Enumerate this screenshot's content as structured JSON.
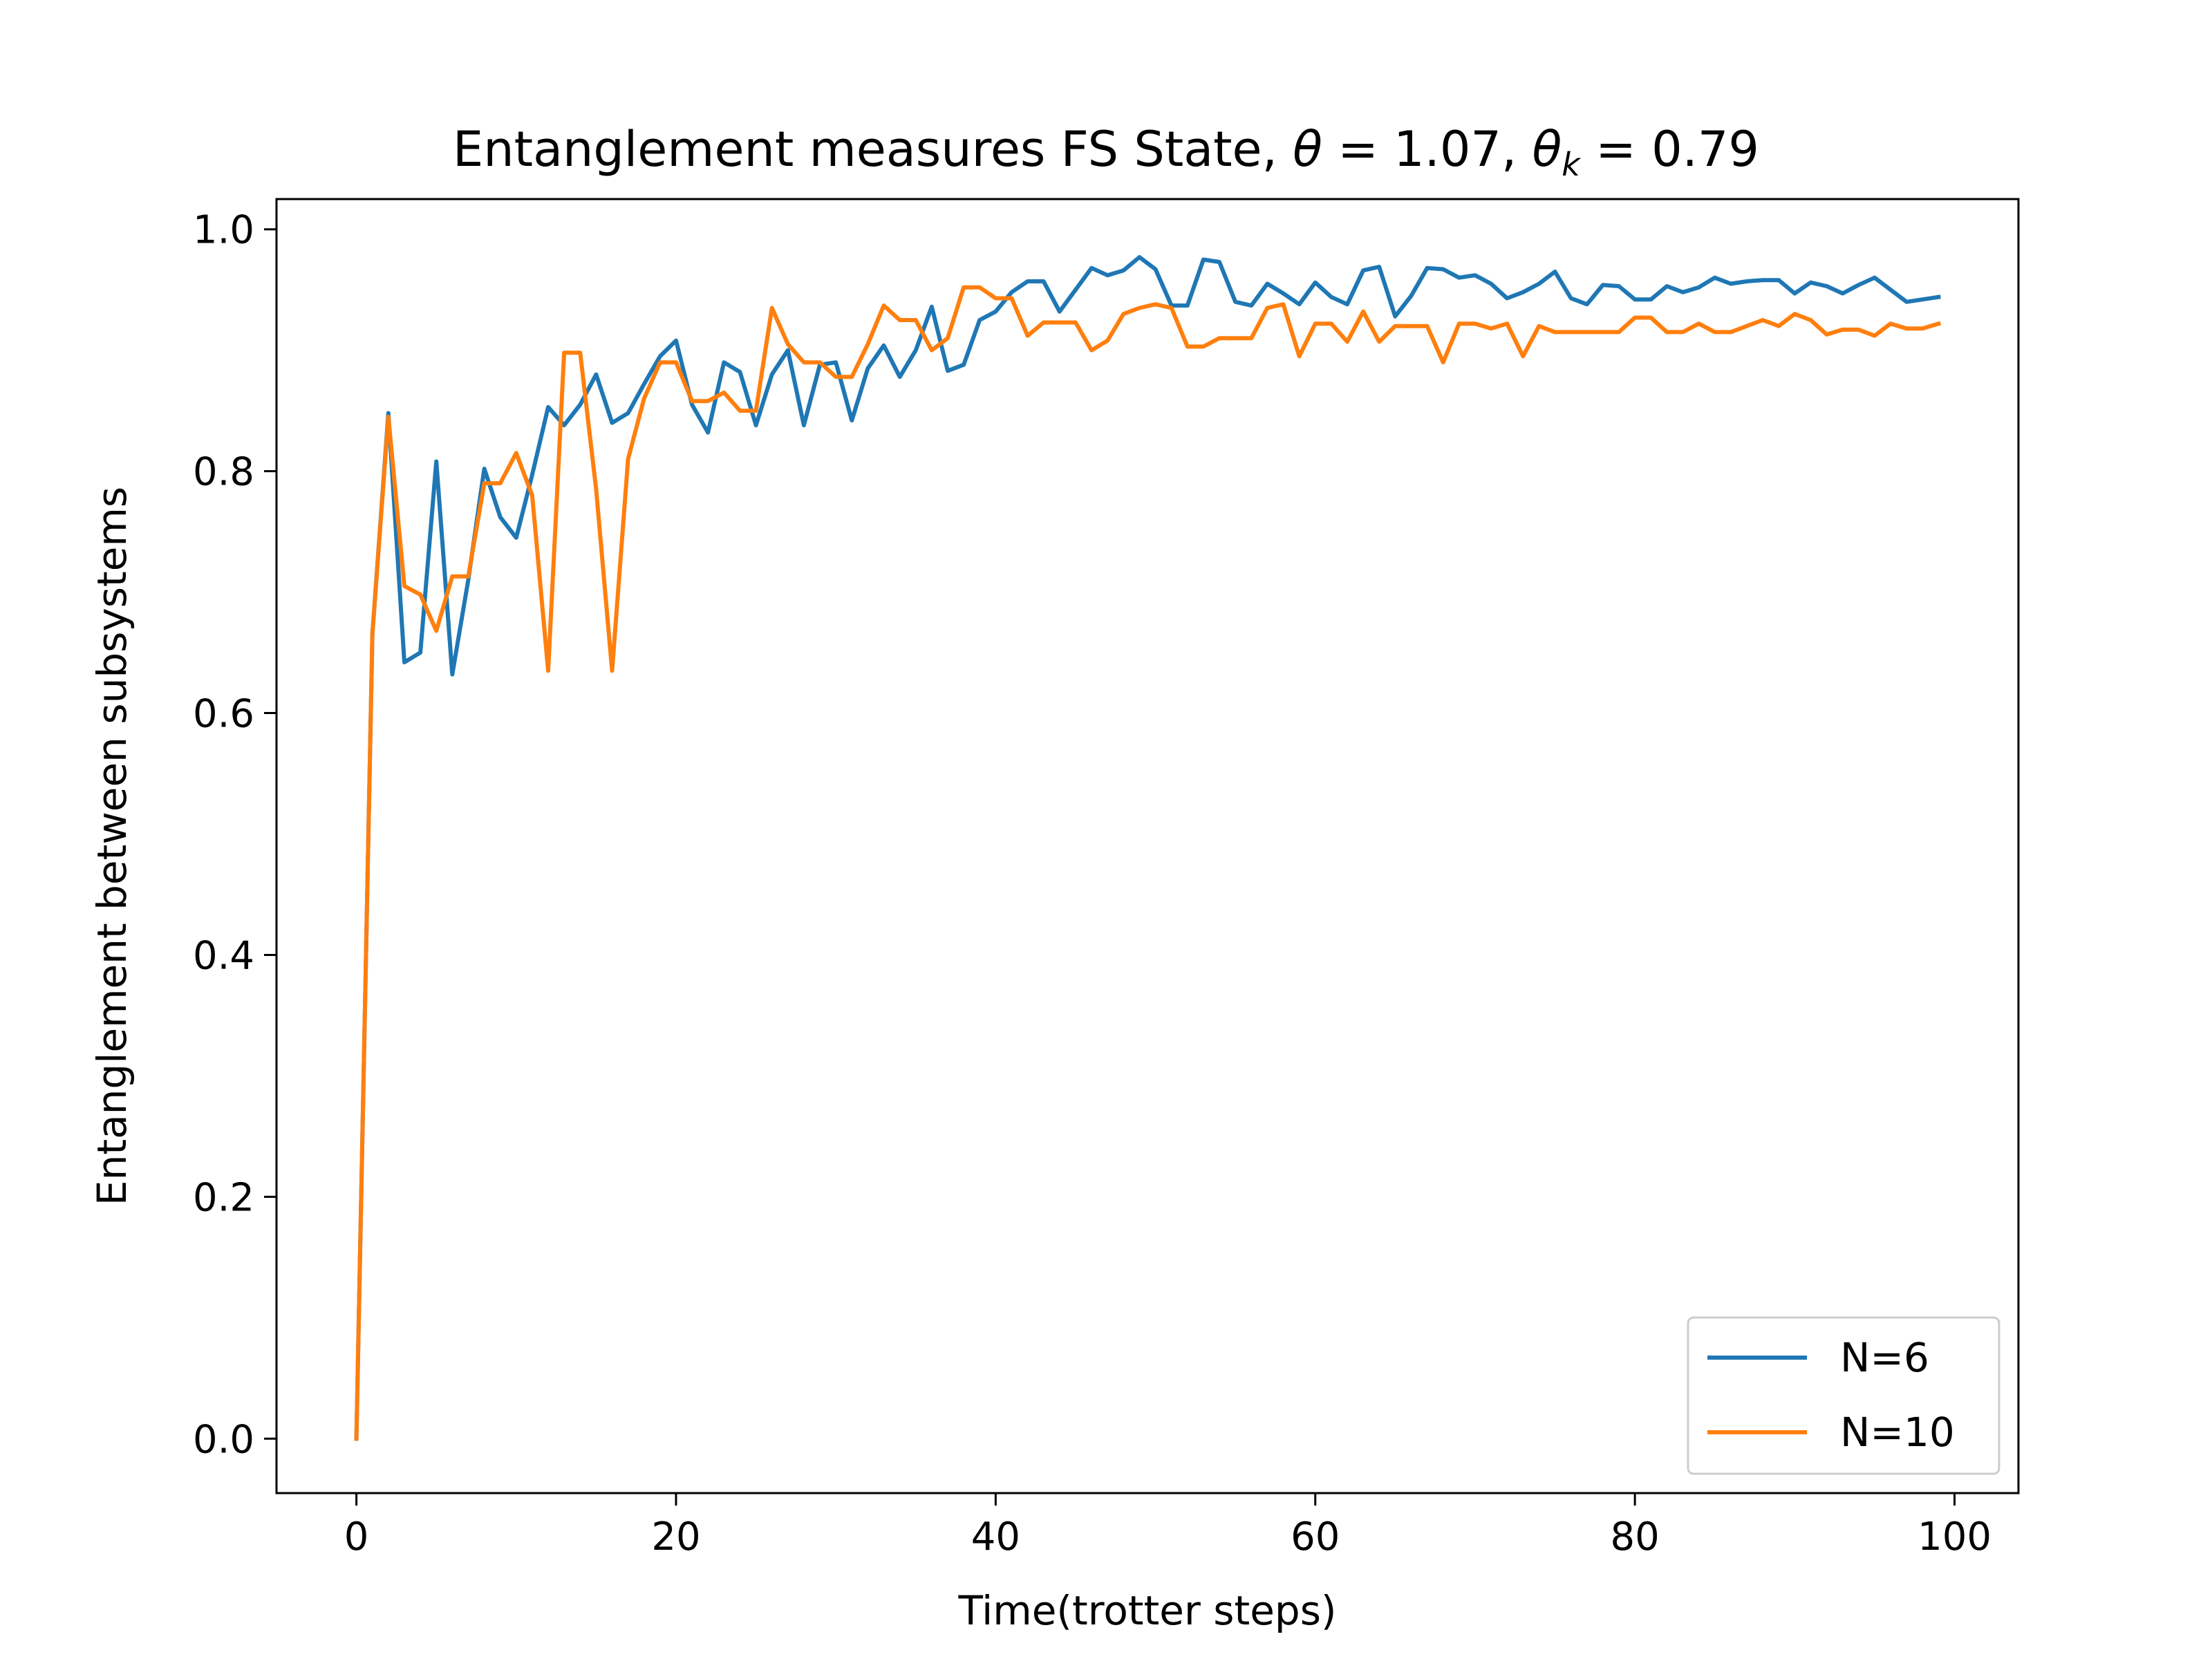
{
  "chart_data": {
    "type": "line",
    "title": {
      "main": "Entanglement measures FS State, ",
      "theta_symbol": "θ",
      "theta_value": " = 1.07,  ",
      "thetak_symbol": "θ",
      "thetak_sub": "k",
      "thetak_value": " = 0.79"
    },
    "xlabel": "Time(trotter steps)",
    "ylabel": "Entanglement between subsystems",
    "xlim": [
      -5,
      104
    ],
    "ylim": [
      -0.045,
      1.025
    ],
    "xticks": [
      0,
      20,
      40,
      60,
      80,
      100
    ],
    "xtick_labels": [
      "0",
      "20",
      "40",
      "60",
      "80",
      "100"
    ],
    "yticks": [
      0.0,
      0.2,
      0.4,
      0.6,
      0.8,
      1.0
    ],
    "ytick_labels": [
      "0.0",
      "0.2",
      "0.4",
      "0.6",
      "0.8",
      "1.0"
    ],
    "grid": false,
    "legend_position": "lower-right",
    "series": [
      {
        "name": "N=6",
        "color": "#1f77b4",
        "values": [
          0.0,
          0.665,
          0.848,
          0.642,
          0.65,
          0.808,
          0.632,
          0.71,
          0.802,
          0.762,
          0.745,
          0.797,
          0.853,
          0.838,
          0.855,
          0.88,
          0.84,
          0.848,
          0.872,
          0.895,
          0.908,
          0.855,
          0.832,
          0.89,
          0.882,
          0.838,
          0.88,
          0.9,
          0.838,
          0.888,
          0.89,
          0.842,
          0.885,
          0.904,
          0.878,
          0.9,
          0.936,
          0.883,
          0.888,
          0.925,
          0.932,
          0.948,
          0.957,
          0.957,
          0.932,
          0.95,
          0.968,
          0.962,
          0.966,
          0.977,
          0.967,
          0.937,
          0.937,
          0.975,
          0.973,
          0.94,
          0.937,
          0.955,
          0.947,
          0.938,
          0.956,
          0.944,
          0.938,
          0.966,
          0.969,
          0.928,
          0.945,
          0.968,
          0.967,
          0.96,
          0.962,
          0.955,
          0.943,
          0.948,
          0.955,
          0.965,
          0.943,
          0.938,
          0.954,
          0.953,
          0.942,
          0.942,
          0.953,
          0.948,
          0.952,
          0.96,
          0.955,
          0.957,
          0.958,
          0.958,
          0.947,
          0.956,
          0.953,
          0.947,
          0.954,
          0.96,
          0.95,
          0.94,
          0.942,
          0.944
        ]
      },
      {
        "name": "N=10",
        "color": "#ff7f0e",
        "values": [
          0.0,
          0.665,
          0.845,
          0.705,
          0.698,
          0.668,
          0.713,
          0.713,
          0.79,
          0.79,
          0.815,
          0.78,
          0.635,
          0.898,
          0.898,
          0.785,
          0.635,
          0.81,
          0.86,
          0.89,
          0.89,
          0.858,
          0.858,
          0.865,
          0.85,
          0.85,
          0.935,
          0.905,
          0.89,
          0.89,
          0.878,
          0.878,
          0.905,
          0.937,
          0.925,
          0.925,
          0.9,
          0.91,
          0.952,
          0.952,
          0.943,
          0.943,
          0.912,
          0.923,
          0.923,
          0.923,
          0.9,
          0.908,
          0.93,
          0.935,
          0.938,
          0.935,
          0.903,
          0.903,
          0.91,
          0.91,
          0.91,
          0.935,
          0.938,
          0.895,
          0.922,
          0.922,
          0.907,
          0.932,
          0.907,
          0.92,
          0.92,
          0.92,
          0.89,
          0.922,
          0.922,
          0.918,
          0.922,
          0.895,
          0.92,
          0.915,
          0.915,
          0.915,
          0.915,
          0.915,
          0.927,
          0.927,
          0.915,
          0.915,
          0.922,
          0.915,
          0.915,
          0.92,
          0.925,
          0.92,
          0.93,
          0.925,
          0.913,
          0.917,
          0.917,
          0.912,
          0.922,
          0.918,
          0.918,
          0.922
        ]
      }
    ]
  }
}
